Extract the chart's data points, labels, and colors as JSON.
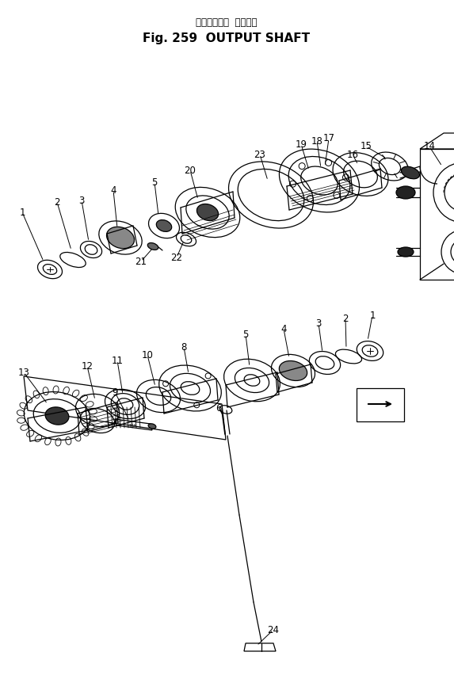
{
  "title_jp": "アウトプット  シャフト",
  "title_en": "Fig. 259  OUTPUT SHAFT",
  "bg_color": "#ffffff",
  "line_color": "#000000",
  "fig_width": 5.73,
  "fig_height": 8.71,
  "dpi": 100
}
